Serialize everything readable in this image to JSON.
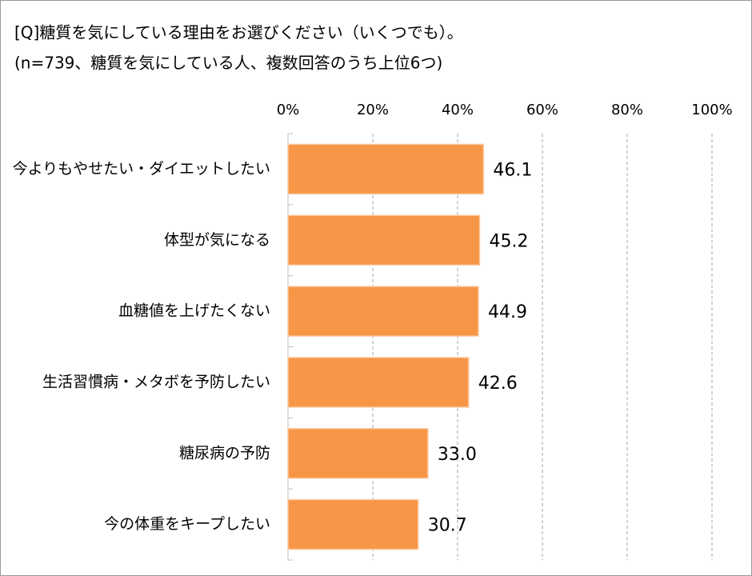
{
  "chart_data": {
    "type": "bar",
    "orientation": "horizontal",
    "title": "[Q]糖質を気にしている理由をお選びください（いくつでも）。",
    "subtitle": "(n=739、糖質を気にしている人、複数回答のうち上位6つ)",
    "categories": [
      "今よりもやせたい・ダイエットしたい",
      "体型が気になる",
      "血糖値を上げたくない",
      "生活習慣病・メタボを予防したい",
      "糖尿病の予防",
      "今の体重をキープしたい"
    ],
    "values": [
      46.1,
      45.2,
      44.9,
      42.6,
      33.0,
      30.7
    ],
    "value_labels": [
      "46.1",
      "45.2",
      "44.9",
      "42.6",
      "33.0",
      "30.7"
    ],
    "color": "#f79646",
    "xlim": [
      0,
      100
    ],
    "xticks": [
      {
        "value": 0,
        "label": "0%"
      },
      {
        "value": 20,
        "label": "20%"
      },
      {
        "value": 40,
        "label": "40%"
      },
      {
        "value": 60,
        "label": "60%"
      },
      {
        "value": 80,
        "label": "80%"
      },
      {
        "value": 100,
        "label": "100%"
      }
    ],
    "grid": true
  }
}
